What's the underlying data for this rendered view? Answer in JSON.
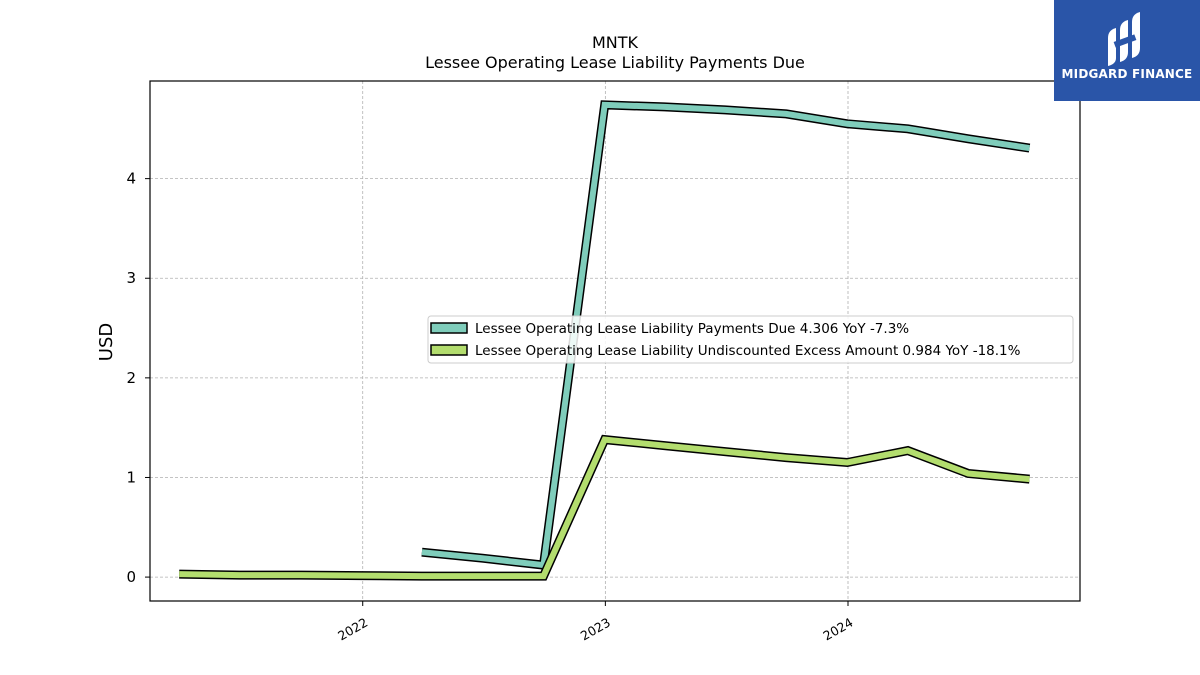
{
  "brand": {
    "name": "MIDGARD FINANCE",
    "background_color": "#2a55a8",
    "icon": "midgard-logo-icon"
  },
  "chart_data": {
    "type": "line",
    "title": "MNTK",
    "subtitle": "Lessee Operating Lease Liability Payments Due",
    "xlabel": "",
    "ylabel": "USD",
    "x_ticks": [
      "2022",
      "2023",
      "2024"
    ],
    "y_ticks": [
      "0",
      "1",
      "2",
      "3",
      "4"
    ],
    "xlim": [
      "2021-02-15",
      "2024-12-15"
    ],
    "ylim": [
      -0.24,
      4.98
    ],
    "grid": true,
    "legend_position": "center-right",
    "series": [
      {
        "name": "Lessee Operating Lease Liability Payments Due",
        "legend_label": "Lessee Operating Lease Liability Payments Due  4.306 YoY -7.3%",
        "color": "#7fcdbb",
        "points": [
          [
            "2022-03-31",
            0.25
          ],
          [
            "2022-06-30",
            0.19
          ],
          [
            "2022-09-30",
            0.12
          ],
          [
            "2022-12-31",
            4.74
          ],
          [
            "2023-03-31",
            4.72
          ],
          [
            "2023-06-30",
            4.69
          ],
          [
            "2023-09-30",
            4.65
          ],
          [
            "2023-12-31",
            4.55
          ],
          [
            "2024-03-31",
            4.5
          ],
          [
            "2024-06-30",
            4.4
          ],
          [
            "2024-09-30",
            4.306
          ]
        ]
      },
      {
        "name": "Lessee Operating Lease Liability Undiscounted Excess Amount",
        "legend_label": "Lessee Operating Lease Liability Undiscounted Excess Amount  0.984 YoY -18.1%",
        "color": "#b3dd6e",
        "points": [
          [
            "2021-03-31",
            0.03
          ],
          [
            "2021-06-30",
            0.02
          ],
          [
            "2021-09-30",
            0.02
          ],
          [
            "2021-12-31",
            0.015
          ],
          [
            "2022-03-31",
            0.01
          ],
          [
            "2022-06-30",
            0.01
          ],
          [
            "2022-09-30",
            0.01
          ],
          [
            "2022-12-31",
            1.38
          ],
          [
            "2023-03-31",
            1.32
          ],
          [
            "2023-06-30",
            1.26
          ],
          [
            "2023-09-30",
            1.2
          ],
          [
            "2023-12-31",
            1.15
          ],
          [
            "2024-03-31",
            1.27
          ],
          [
            "2024-06-30",
            1.04
          ],
          [
            "2024-09-30",
            0.984
          ]
        ]
      }
    ]
  }
}
